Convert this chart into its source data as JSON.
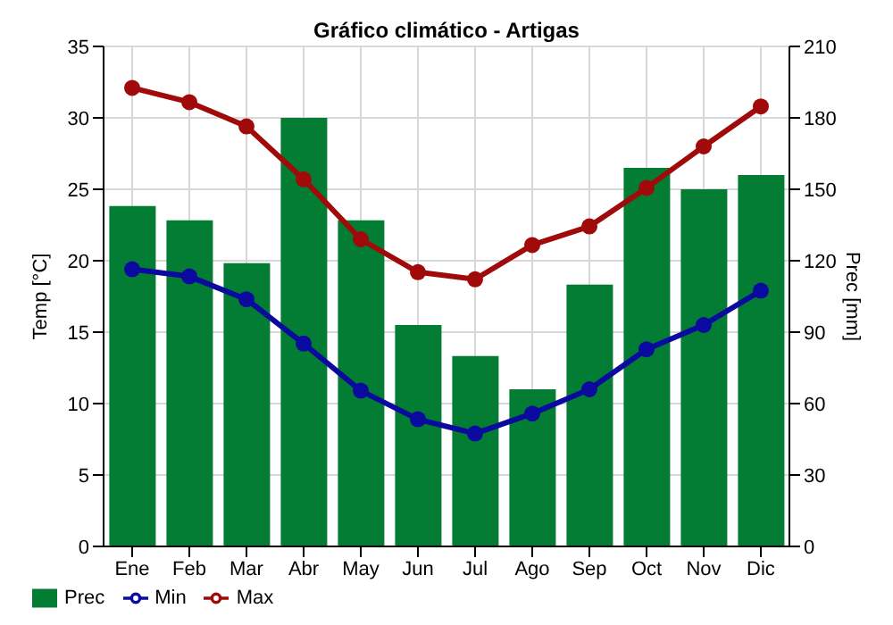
{
  "chart_data": {
    "type": "bar",
    "title": "Gráfico climático - Artigas",
    "ylabel": "Temp [°C]",
    "y2label": "Prec [mm]",
    "categories": [
      "Ene",
      "Feb",
      "Mar",
      "Abr",
      "May",
      "Jun",
      "Jul",
      "Ago",
      "Sep",
      "Oct",
      "Nov",
      "Dic"
    ],
    "series": [
      {
        "name": "Prec",
        "axis": "y2",
        "color": "#037d33",
        "values": [
          143,
          137,
          119,
          180,
          137,
          93,
          80,
          66,
          110,
          159,
          150,
          156
        ]
      },
      {
        "name": "Min",
        "type": "line",
        "color": "#0a0a9e",
        "values": [
          19.4,
          18.9,
          17.3,
          14.2,
          10.9,
          8.9,
          7.9,
          9.3,
          11.0,
          13.8,
          15.5,
          17.9
        ]
      },
      {
        "name": "Max",
        "type": "line",
        "color": "#a00a0a",
        "values": [
          32.1,
          31.1,
          29.4,
          25.7,
          21.5,
          19.2,
          18.7,
          21.1,
          22.4,
          25.1,
          28.0,
          30.8
        ]
      }
    ],
    "ylim": [
      0,
      35
    ],
    "yticks": [
      0,
      5,
      10,
      15,
      20,
      25,
      30,
      35
    ],
    "y2lim": [
      0,
      210
    ],
    "y2ticks": [
      0,
      30,
      60,
      90,
      120,
      150,
      180,
      210
    ],
    "grid": true,
    "legend": "bottom",
    "marker": "circle"
  }
}
